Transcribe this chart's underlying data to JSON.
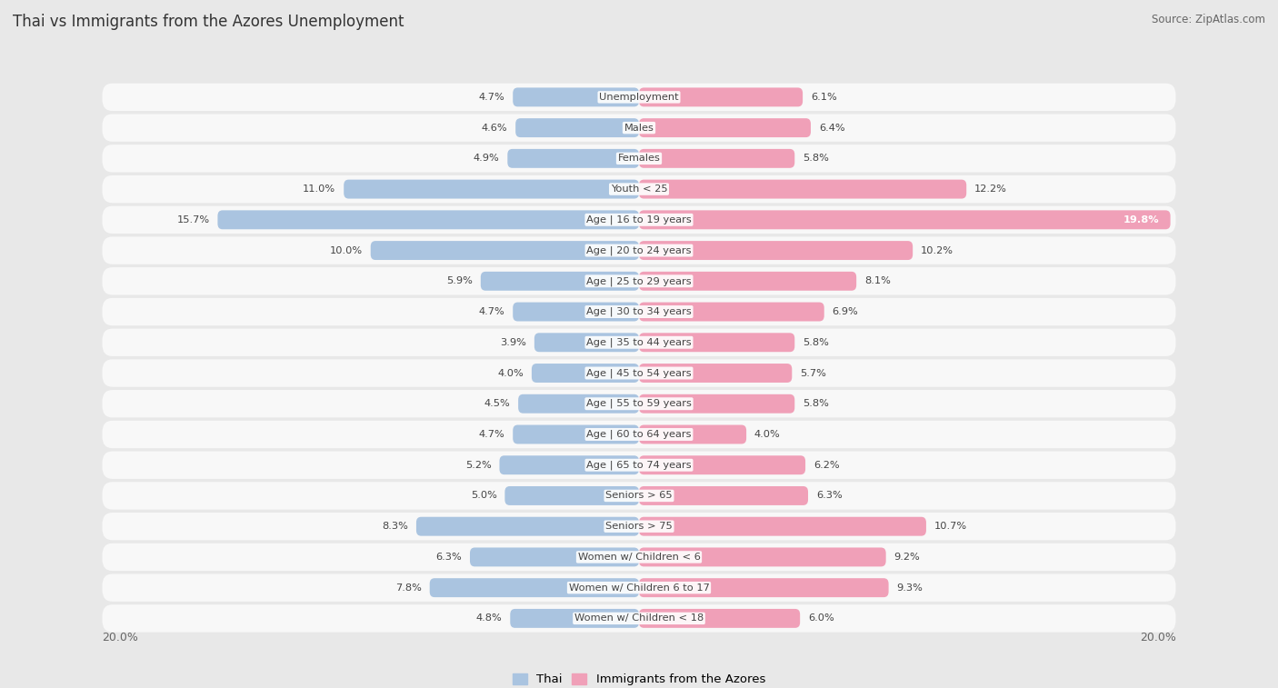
{
  "title": "Thai vs Immigrants from the Azores Unemployment",
  "source": "Source: ZipAtlas.com",
  "categories": [
    "Unemployment",
    "Males",
    "Females",
    "Youth < 25",
    "Age | 16 to 19 years",
    "Age | 20 to 24 years",
    "Age | 25 to 29 years",
    "Age | 30 to 34 years",
    "Age | 35 to 44 years",
    "Age | 45 to 54 years",
    "Age | 55 to 59 years",
    "Age | 60 to 64 years",
    "Age | 65 to 74 years",
    "Seniors > 65",
    "Seniors > 75",
    "Women w/ Children < 6",
    "Women w/ Children 6 to 17",
    "Women w/ Children < 18"
  ],
  "thai_values": [
    4.7,
    4.6,
    4.9,
    11.0,
    15.7,
    10.0,
    5.9,
    4.7,
    3.9,
    4.0,
    4.5,
    4.7,
    5.2,
    5.0,
    8.3,
    6.3,
    7.8,
    4.8
  ],
  "azores_values": [
    6.1,
    6.4,
    5.8,
    12.2,
    19.8,
    10.2,
    8.1,
    6.9,
    5.8,
    5.7,
    5.8,
    4.0,
    6.2,
    6.3,
    10.7,
    9.2,
    9.3,
    6.0
  ],
  "thai_color": "#aac4e0",
  "azores_color": "#f0a0b8",
  "thai_label": "Thai",
  "azores_label": "Immigrants from the Azores",
  "x_max": 20.0,
  "background_color": "#e8e8e8",
  "row_bg_color": "#f8f8f8",
  "label_color": "#444444",
  "axis_label_color": "#666666",
  "title_color": "#333333"
}
